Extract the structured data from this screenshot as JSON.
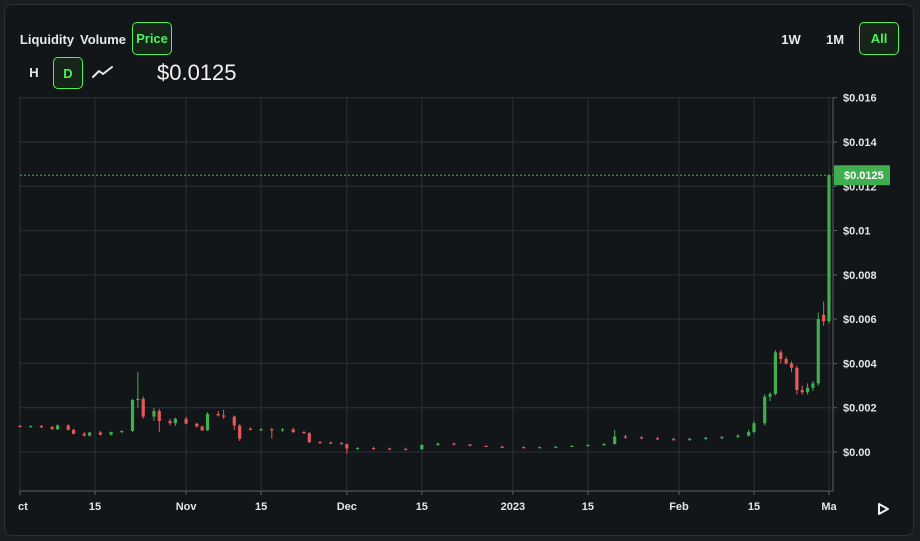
{
  "toolbar": {
    "metrics": [
      {
        "label": "Liquidity",
        "active": false
      },
      {
        "label": "Volume",
        "active": false
      },
      {
        "label": "Price",
        "active": true
      }
    ],
    "ranges": [
      {
        "label": "1W",
        "active": false
      },
      {
        "label": "1M",
        "active": false
      },
      {
        "label": "All",
        "active": true
      }
    ],
    "intervals": [
      {
        "label": "H",
        "active": false
      },
      {
        "label": "D",
        "active": true
      }
    ],
    "chart_style_icon": "line-chart-icon",
    "scroll_icon": "play-right-icon"
  },
  "current_price": "$0.0125",
  "colors": {
    "up": "#3fae4f",
    "down": "#e5585a",
    "accent": "#4ff05a",
    "price_line": "#3fae4f"
  },
  "chart_data": {
    "type": "candlestick",
    "x_axis": "date",
    "y_axis_ticks": [
      "$0.00",
      "$0.002",
      "$0.004",
      "$0.006",
      "$0.008",
      "$0.01",
      "$0.012",
      "$0.014",
      "$0.016"
    ],
    "y_ticks_values": [
      0,
      0.002,
      0.004,
      0.006,
      0.008,
      0.01,
      0.012,
      0.014,
      0.016
    ],
    "x_axis_ticks": [
      {
        "label": "ct",
        "date": "2022-10-01"
      },
      {
        "label": "15",
        "date": "2022-10-15"
      },
      {
        "label": "Nov",
        "date": "2022-11-01"
      },
      {
        "label": "15",
        "date": "2022-11-15"
      },
      {
        "label": "Dec",
        "date": "2022-12-01"
      },
      {
        "label": "15",
        "date": "2022-12-15"
      },
      {
        "label": "2023",
        "date": "2023-01-01"
      },
      {
        "label": "15",
        "date": "2023-01-15"
      },
      {
        "label": "Feb",
        "date": "2023-02-01"
      },
      {
        "label": "15",
        "date": "2023-02-15"
      },
      {
        "label": "Ma",
        "date": "2023-03-01"
      }
    ],
    "ylim": [
      -0.0018,
      0.016
    ],
    "xlim": [
      "2022-10-01",
      "2023-03-01"
    ],
    "grid": true,
    "current_value": 0.0125,
    "current_label": "$0.0125",
    "candles": [
      {
        "d": "2022-10-01",
        "o": 0.00118,
        "h": 0.00122,
        "l": 0.00112,
        "c": 0.00115
      },
      {
        "d": "2022-10-03",
        "o": 0.00115,
        "h": 0.0012,
        "l": 0.0011,
        "c": 0.00117
      },
      {
        "d": "2022-10-05",
        "o": 0.00117,
        "h": 0.00122,
        "l": 0.00108,
        "c": 0.00112
      },
      {
        "d": "2022-10-07",
        "o": 0.00112,
        "h": 0.00118,
        "l": 0.001,
        "c": 0.00103
      },
      {
        "d": "2022-10-08",
        "o": 0.00103,
        "h": 0.00125,
        "l": 0.001,
        "c": 0.0012
      },
      {
        "d": "2022-10-10",
        "o": 0.0012,
        "h": 0.00125,
        "l": 0.00098,
        "c": 0.001
      },
      {
        "d": "2022-10-11",
        "o": 0.001,
        "h": 0.00105,
        "l": 0.0008,
        "c": 0.00082
      },
      {
        "d": "2022-10-13",
        "o": 0.00082,
        "h": 0.0009,
        "l": 0.0007,
        "c": 0.00074
      },
      {
        "d": "2022-10-14",
        "o": 0.00074,
        "h": 0.0009,
        "l": 0.0007,
        "c": 0.00088
      },
      {
        "d": "2022-10-16",
        "o": 0.00088,
        "h": 0.00095,
        "l": 0.00075,
        "c": 0.00078
      },
      {
        "d": "2022-10-18",
        "o": 0.00078,
        "h": 0.00092,
        "l": 0.00074,
        "c": 0.0009
      },
      {
        "d": "2022-10-20",
        "o": 0.0009,
        "h": 0.00098,
        "l": 0.00085,
        "c": 0.00095
      },
      {
        "d": "2022-10-22",
        "o": 0.00095,
        "h": 0.0024,
        "l": 0.0009,
        "c": 0.00235
      },
      {
        "d": "2022-10-23",
        "o": 0.00235,
        "h": 0.0036,
        "l": 0.002,
        "c": 0.0024
      },
      {
        "d": "2022-10-24",
        "o": 0.0024,
        "h": 0.0025,
        "l": 0.0015,
        "c": 0.0016
      },
      {
        "d": "2022-10-26",
        "o": 0.0016,
        "h": 0.002,
        "l": 0.0014,
        "c": 0.00185
      },
      {
        "d": "2022-10-27",
        "o": 0.00185,
        "h": 0.00195,
        "l": 0.0009,
        "c": 0.0014
      },
      {
        "d": "2022-10-29",
        "o": 0.0014,
        "h": 0.0015,
        "l": 0.0012,
        "c": 0.0013
      },
      {
        "d": "2022-10-30",
        "o": 0.0013,
        "h": 0.00155,
        "l": 0.00118,
        "c": 0.0015
      },
      {
        "d": "2022-11-01",
        "o": 0.0015,
        "h": 0.0016,
        "l": 0.00125,
        "c": 0.00128
      },
      {
        "d": "2022-11-03",
        "o": 0.00128,
        "h": 0.00132,
        "l": 0.0011,
        "c": 0.00115
      },
      {
        "d": "2022-11-04",
        "o": 0.00115,
        "h": 0.0012,
        "l": 0.00095,
        "c": 0.00098
      },
      {
        "d": "2022-11-05",
        "o": 0.00098,
        "h": 0.0018,
        "l": 0.00095,
        "c": 0.00172
      },
      {
        "d": "2022-11-07",
        "o": 0.00172,
        "h": 0.00185,
        "l": 0.0016,
        "c": 0.00165
      },
      {
        "d": "2022-11-08",
        "o": 0.00165,
        "h": 0.0019,
        "l": 0.0015,
        "c": 0.0016
      },
      {
        "d": "2022-11-10",
        "o": 0.0016,
        "h": 0.00165,
        "l": 0.001,
        "c": 0.0012
      },
      {
        "d": "2022-11-11",
        "o": 0.0012,
        "h": 0.00125,
        "l": 0.0005,
        "c": 0.0006
      },
      {
        "d": "2022-11-13",
        "o": 0.00105,
        "h": 0.00112,
        "l": 0.00098,
        "c": 0.001
      },
      {
        "d": "2022-11-15",
        "o": 0.001,
        "h": 0.00108,
        "l": 0.00095,
        "c": 0.00103
      },
      {
        "d": "2022-11-17",
        "o": 0.00103,
        "h": 0.0011,
        "l": 0.0006,
        "c": 0.00098
      },
      {
        "d": "2022-11-19",
        "o": 0.00098,
        "h": 0.00108,
        "l": 0.00092,
        "c": 0.00102
      },
      {
        "d": "2022-11-21",
        "o": 0.00102,
        "h": 0.0011,
        "l": 0.00085,
        "c": 0.0009
      },
      {
        "d": "2022-11-23",
        "o": 0.0009,
        "h": 0.00095,
        "l": 0.00082,
        "c": 0.00085
      },
      {
        "d": "2022-11-24",
        "o": 0.00085,
        "h": 0.0009,
        "l": 0.0004,
        "c": 0.00045
      },
      {
        "d": "2022-11-26",
        "o": 0.00045,
        "h": 0.0005,
        "l": 0.00038,
        "c": 0.00042
      },
      {
        "d": "2022-11-28",
        "o": 0.00042,
        "h": 0.00048,
        "l": 0.00036,
        "c": 0.0004
      },
      {
        "d": "2022-11-30",
        "o": 0.0004,
        "h": 0.00045,
        "l": 0.00034,
        "c": 0.00036
      },
      {
        "d": "2022-12-01",
        "o": 0.00036,
        "h": 0.00038,
        "l": -8e-05,
        "c": 0.00016
      },
      {
        "d": "2022-12-03",
        "o": 0.00016,
        "h": 0.00022,
        "l": 0.00012,
        "c": 0.00018
      },
      {
        "d": "2022-12-06",
        "o": 0.00018,
        "h": 0.00024,
        "l": 0.00012,
        "c": 0.00016
      },
      {
        "d": "2022-12-09",
        "o": 0.00016,
        "h": 0.0002,
        "l": 0.0001,
        "c": 0.00014
      },
      {
        "d": "2022-12-12",
        "o": 0.00014,
        "h": 0.0002,
        "l": 0.0001,
        "c": 0.00012
      },
      {
        "d": "2022-12-15",
        "o": 0.00012,
        "h": 0.00035,
        "l": 0.0001,
        "c": 0.00032
      },
      {
        "d": "2022-12-18",
        "o": 0.00032,
        "h": 0.00042,
        "l": 0.00028,
        "c": 0.00038
      },
      {
        "d": "2022-12-21",
        "o": 0.00038,
        "h": 0.00042,
        "l": 0.0003,
        "c": 0.00034
      },
      {
        "d": "2022-12-24",
        "o": 0.00034,
        "h": 0.00036,
        "l": 0.00026,
        "c": 0.00028
      },
      {
        "d": "2022-12-27",
        "o": 0.00028,
        "h": 0.0003,
        "l": 0.00022,
        "c": 0.00024
      },
      {
        "d": "2022-12-30",
        "o": 0.00024,
        "h": 0.00028,
        "l": 0.0002,
        "c": 0.00022
      },
      {
        "d": "2023-01-03",
        "o": 0.00022,
        "h": 0.00026,
        "l": 0.00018,
        "c": 0.0002
      },
      {
        "d": "2023-01-06",
        "o": 0.0002,
        "h": 0.00024,
        "l": 0.00018,
        "c": 0.00022
      },
      {
        "d": "2023-01-09",
        "o": 0.00022,
        "h": 0.00026,
        "l": 0.00019,
        "c": 0.00024
      },
      {
        "d": "2023-01-12",
        "o": 0.00024,
        "h": 0.0003,
        "l": 0.00022,
        "c": 0.00028
      },
      {
        "d": "2023-01-15",
        "o": 0.00028,
        "h": 0.00034,
        "l": 0.00024,
        "c": 0.00032
      },
      {
        "d": "2023-01-18",
        "o": 0.00032,
        "h": 0.0004,
        "l": 0.00028,
        "c": 0.00036
      },
      {
        "d": "2023-01-20",
        "o": 0.00036,
        "h": 0.001,
        "l": 0.00034,
        "c": 0.0007
      },
      {
        "d": "2023-01-22",
        "o": 0.0007,
        "h": 0.00078,
        "l": 0.0006,
        "c": 0.00066
      },
      {
        "d": "2023-01-25",
        "o": 0.00066,
        "h": 0.00072,
        "l": 0.00058,
        "c": 0.00062
      },
      {
        "d": "2023-01-28",
        "o": 0.00062,
        "h": 0.00068,
        "l": 0.00055,
        "c": 0.00058
      },
      {
        "d": "2023-01-31",
        "o": 0.00058,
        "h": 0.00064,
        "l": 0.00052,
        "c": 0.00055
      },
      {
        "d": "2023-02-03",
        "o": 0.00055,
        "h": 0.00064,
        "l": 0.0005,
        "c": 0.0006
      },
      {
        "d": "2023-02-06",
        "o": 0.0006,
        "h": 0.00068,
        "l": 0.00055,
        "c": 0.00064
      },
      {
        "d": "2023-02-09",
        "o": 0.00064,
        "h": 0.00072,
        "l": 0.00058,
        "c": 0.00068
      },
      {
        "d": "2023-02-12",
        "o": 0.00068,
        "h": 0.0008,
        "l": 0.00062,
        "c": 0.00074
      },
      {
        "d": "2023-02-14",
        "o": 0.00074,
        "h": 0.001,
        "l": 0.0007,
        "c": 0.0009
      },
      {
        "d": "2023-02-15",
        "o": 0.0009,
        "h": 0.0014,
        "l": 0.00085,
        "c": 0.0013
      },
      {
        "d": "2023-02-17",
        "o": 0.0013,
        "h": 0.0026,
        "l": 0.0012,
        "c": 0.0025
      },
      {
        "d": "2023-02-18",
        "o": 0.0025,
        "h": 0.0027,
        "l": 0.0023,
        "c": 0.00262
      },
      {
        "d": "2023-02-19",
        "o": 0.00262,
        "h": 0.0046,
        "l": 0.00255,
        "c": 0.0045
      },
      {
        "d": "2023-02-20",
        "o": 0.0045,
        "h": 0.0046,
        "l": 0.004,
        "c": 0.0042
      },
      {
        "d": "2023-02-21",
        "o": 0.0042,
        "h": 0.0043,
        "l": 0.00395,
        "c": 0.004
      },
      {
        "d": "2023-02-22",
        "o": 0.004,
        "h": 0.0041,
        "l": 0.0036,
        "c": 0.0038
      },
      {
        "d": "2023-02-23",
        "o": 0.0038,
        "h": 0.0039,
        "l": 0.0026,
        "c": 0.0028
      },
      {
        "d": "2023-02-24",
        "o": 0.0028,
        "h": 0.003,
        "l": 0.0026,
        "c": 0.0027
      },
      {
        "d": "2023-02-25",
        "o": 0.0027,
        "h": 0.0031,
        "l": 0.0026,
        "c": 0.0029
      },
      {
        "d": "2023-02-26",
        "o": 0.0029,
        "h": 0.0032,
        "l": 0.00275,
        "c": 0.0031
      },
      {
        "d": "2023-02-27",
        "o": 0.0031,
        "h": 0.0063,
        "l": 0.003,
        "c": 0.006
      },
      {
        "d": "2023-02-28",
        "o": 0.0062,
        "h": 0.0068,
        "l": 0.0057,
        "c": 0.0059
      },
      {
        "d": "2023-03-01",
        "o": 0.0059,
        "h": 0.0125,
        "l": 0.0058,
        "c": 0.0125
      }
    ]
  }
}
